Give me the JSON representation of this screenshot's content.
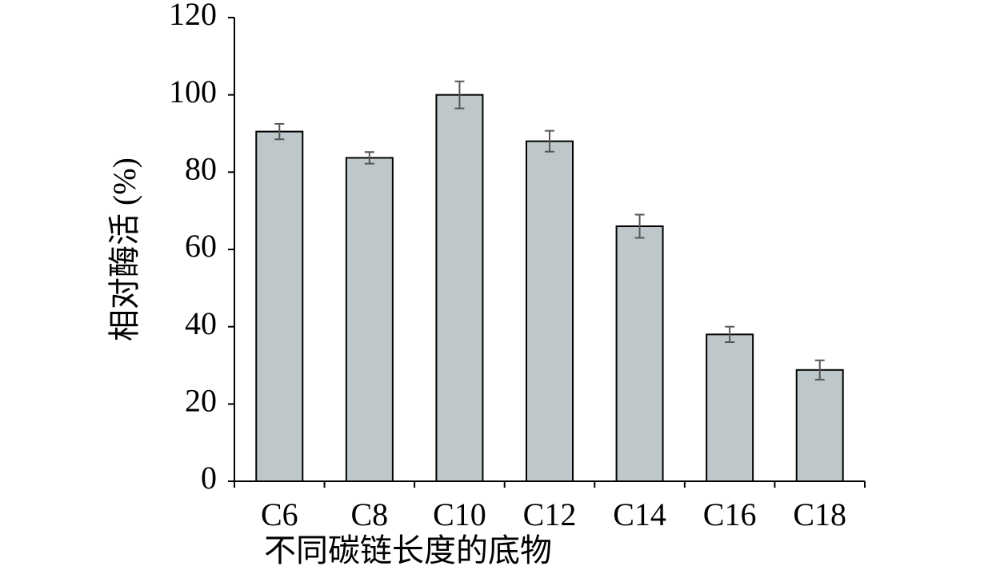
{
  "chart_data": {
    "type": "bar",
    "xlabel": "不同碳链长度的底物",
    "ylabel": "相对酶活 (%)",
    "categories": [
      "C6",
      "C8",
      "C10",
      "C12",
      "C14",
      "C16",
      "C18"
    ],
    "values": [
      90.5,
      83.7,
      100,
      88,
      66,
      38,
      28.8
    ],
    "errors": [
      2,
      1.5,
      3.5,
      2.7,
      3,
      2,
      2.5
    ],
    "color": "#bec8ca",
    "ylim": [
      0,
      120
    ],
    "yticks": [
      0,
      20,
      40,
      60,
      80,
      100,
      120
    ]
  }
}
